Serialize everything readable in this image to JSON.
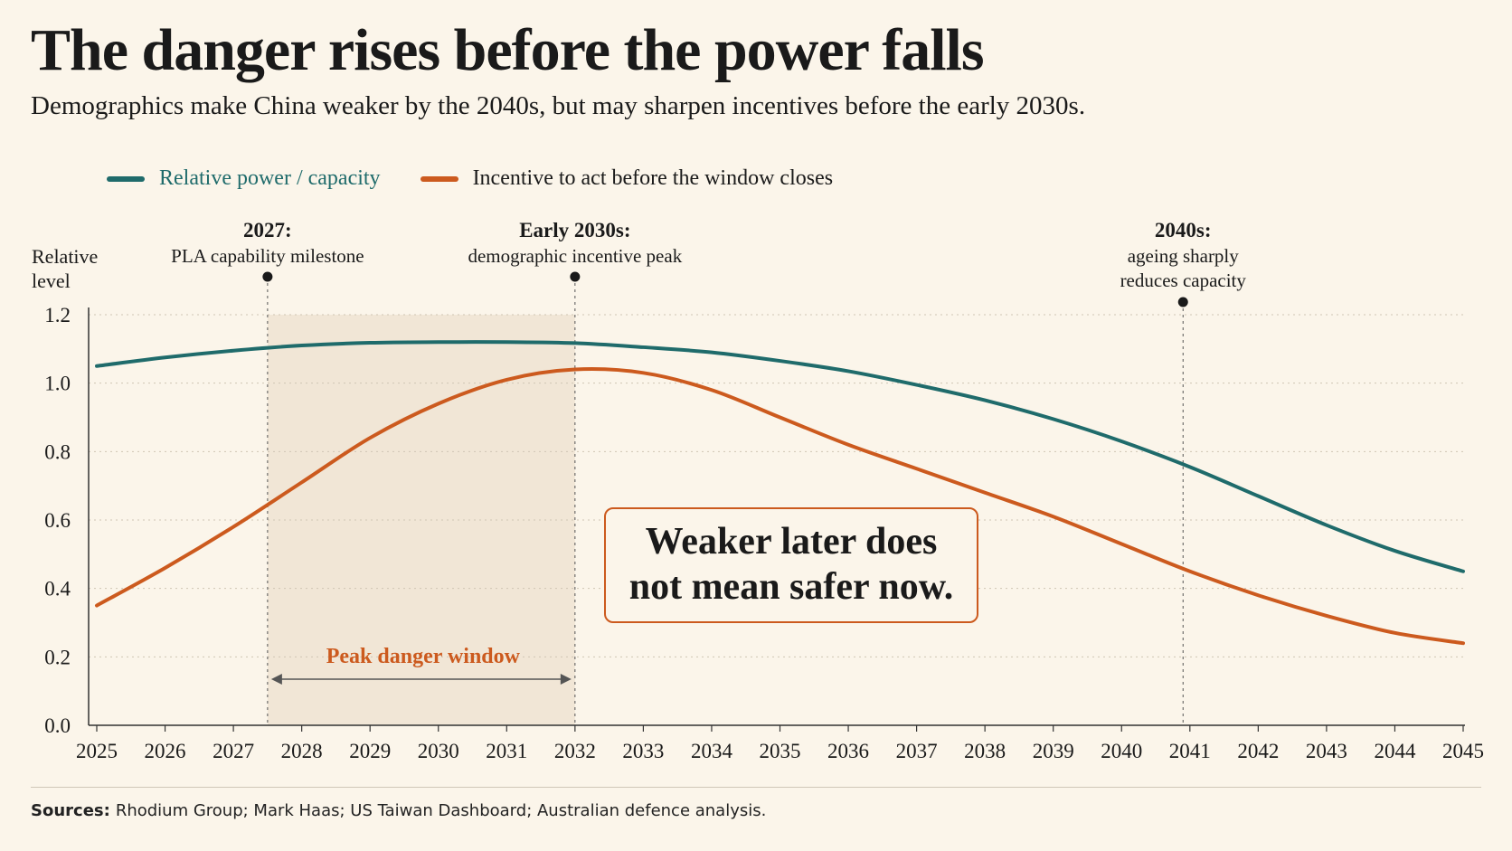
{
  "title": "The danger rises before the power falls",
  "subtitle": "Demographics make China weaker by the 2040s, but may sharpen incentives before the early 2030s.",
  "callout": {
    "line1": "Weaker later does",
    "line2": "not mean safer now."
  },
  "sources": {
    "label": "Sources:",
    "text": "Rhodium Group; Mark Haas; US Taiwan Dashboard; Australian defence analysis."
  },
  "colors": {
    "power": "#1f6b6b",
    "incentive": "#cc5a1e",
    "background": "#fbf5ea",
    "window": "#f1e6d6"
  },
  "chart_data": {
    "type": "line",
    "ylabel_lines": [
      "Relative",
      "level"
    ],
    "ylim": [
      0,
      1.2
    ],
    "yticks": [
      "0.0",
      "0.2",
      "0.4",
      "0.6",
      "0.8",
      "1.0",
      "1.2"
    ],
    "xlim": [
      2025,
      2045
    ],
    "xticks": [
      "2025",
      "2026",
      "2027",
      "2028",
      "2029",
      "2030",
      "2031",
      "2032",
      "2033",
      "2034",
      "2035",
      "2036",
      "2037",
      "2038",
      "2039",
      "2040",
      "2041",
      "2042",
      "2043",
      "2044",
      "2045"
    ],
    "grid": true,
    "legend_position": "top-left",
    "series": [
      {
        "name": "Relative power / capacity",
        "color": "#1f6b6b",
        "x": [
          2025,
          2026,
          2027,
          2028,
          2029,
          2030,
          2031,
          2032,
          2033,
          2034,
          2035,
          2036,
          2037,
          2038,
          2039,
          2040,
          2041,
          2042,
          2043,
          2044,
          2045
        ],
        "values": [
          1.05,
          1.075,
          1.095,
          1.11,
          1.118,
          1.12,
          1.12,
          1.117,
          1.105,
          1.09,
          1.065,
          1.035,
          0.995,
          0.95,
          0.895,
          0.83,
          0.755,
          0.67,
          0.585,
          0.51,
          0.45
        ]
      },
      {
        "name": "Incentive to act before the window closes",
        "color": "#cc5a1e",
        "x": [
          2025,
          2026,
          2027,
          2028,
          2029,
          2030,
          2031,
          2032,
          2033,
          2034,
          2035,
          2036,
          2037,
          2038,
          2039,
          2040,
          2041,
          2042,
          2043,
          2044,
          2045
        ],
        "values": [
          0.35,
          0.46,
          0.58,
          0.71,
          0.84,
          0.94,
          1.01,
          1.04,
          1.03,
          0.98,
          0.9,
          0.82,
          0.75,
          0.68,
          0.61,
          0.53,
          0.45,
          0.38,
          0.32,
          0.27,
          0.24
        ]
      }
    ],
    "shaded_region": {
      "label": "Peak danger window",
      "x_start": 2027.5,
      "x_end": 2032
    },
    "annotations": [
      {
        "x": 2027.5,
        "y_above": 1.24,
        "bold": "2027:",
        "lines": [
          "PLA capability milestone"
        ]
      },
      {
        "x": 2032,
        "y_above": 1.24,
        "bold": "Early 2030s:",
        "lines": [
          "demographic incentive peak"
        ]
      },
      {
        "x": 2040.9,
        "y_above": 1.24,
        "bold": "2040s:",
        "lines": [
          "ageing sharply",
          "reduces capacity"
        ]
      }
    ]
  }
}
